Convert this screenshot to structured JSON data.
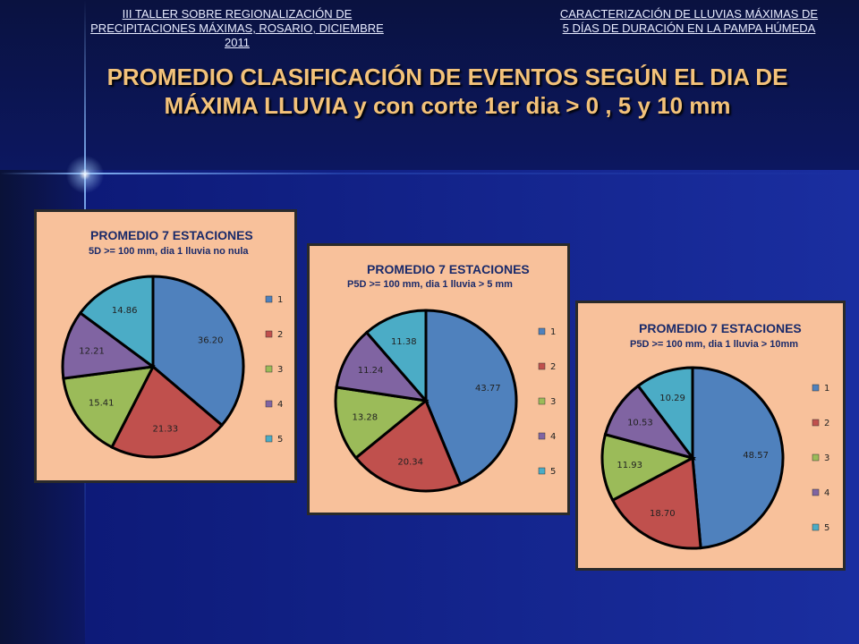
{
  "header": {
    "left_line1": "III TALLER SOBRE REGIONALIZACIÓN DE",
    "left_line2": "PRECIPITACIONES MÁXIMAS, ROSARIO, DICIEMBRE 2011",
    "right_line1": "CARACTERIZACIÓN DE LLUVIAS MÁXIMAS DE",
    "right_line2": "5 DÍAS DE DURACIÓN EN LA PAMPA HÚMEDA"
  },
  "title": {
    "line1": "PROMEDIO CLASIFICACIÓN DE EVENTOS SEGÚN EL DIA DE",
    "line2": "MÁXIMA LLUVIA  y con corte 1er dia  > 0 , 5 y 10 mm"
  },
  "colors": {
    "slice_1": "#4f81bd",
    "slice_2": "#c0504d",
    "slice_3": "#9bbb59",
    "slice_4": "#8064a2",
    "slice_5": "#4bacc6",
    "panel_bg": "#f8c19b",
    "title_color": "#f3c27a"
  },
  "chart_data": [
    {
      "type": "pie",
      "title": "PROMEDIO 7 ESTACIONES",
      "subtitle": "5D >= 100 mm, dia 1 lluvia no nula",
      "categories": [
        "1",
        "2",
        "3",
        "4",
        "5"
      ],
      "values": [
        36.2,
        21.33,
        15.41,
        12.21,
        14.86
      ],
      "labels": [
        "36.20",
        "21.33",
        "15.41",
        "12.21",
        "14.86"
      ],
      "legend": "right"
    },
    {
      "type": "pie",
      "title": "PROMEDIO 7 ESTACIONES",
      "subtitle": "P5D >= 100 mm, dia 1 lluvia > 5 mm",
      "categories": [
        "1",
        "2",
        "3",
        "4",
        "5"
      ],
      "values": [
        43.77,
        20.34,
        13.28,
        11.24,
        11.38
      ],
      "labels": [
        "43.77",
        "20.34",
        "13.28",
        "11.24",
        "11.38"
      ],
      "legend": "right"
    },
    {
      "type": "pie",
      "title": "PROMEDIO  7 ESTACIONES",
      "subtitle": "P5D >= 100 mm, dia 1 lluvia > 10mm",
      "categories": [
        "1",
        "2",
        "3",
        "4",
        "5"
      ],
      "values": [
        48.57,
        18.7,
        11.93,
        10.53,
        10.29
      ],
      "labels": [
        "48.57",
        "18.70",
        "11.93",
        "10.53",
        "10.29"
      ],
      "legend": "right"
    }
  ]
}
